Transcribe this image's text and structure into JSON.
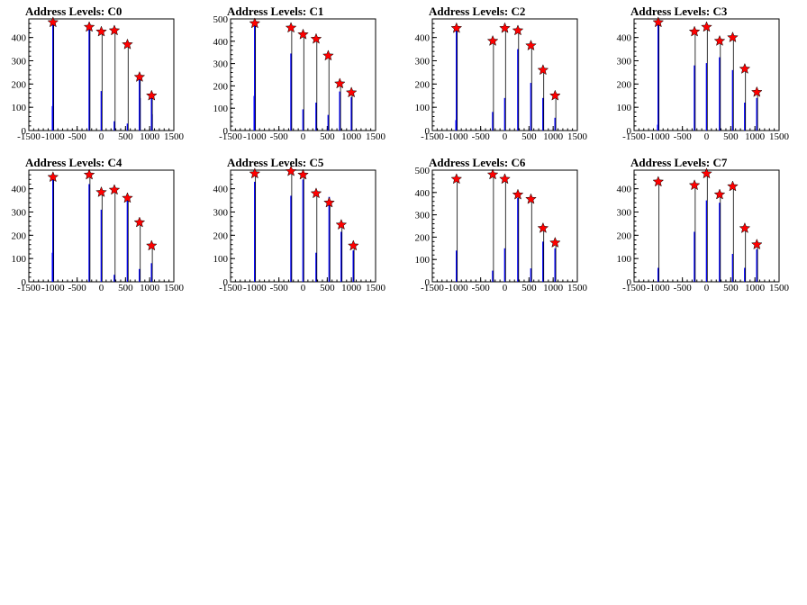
{
  "colors": {
    "bars": "#0000ff",
    "markers": "#ff0000",
    "axes": "#000000"
  },
  "chart_data": [
    {
      "type": "bar",
      "title": "Address Levels: C0",
      "xlim": [
        -1500,
        1500
      ],
      "ylim": [
        0,
        480
      ],
      "yticks": [
        0,
        100,
        200,
        300,
        400
      ],
      "xticks": [
        -1500,
        -1000,
        -500,
        0,
        500,
        1000,
        1500
      ],
      "peaks": [
        {
          "x": -1000,
          "y": 465
        },
        {
          "x": -250,
          "y": 445
        },
        {
          "x": 0,
          "y": 425
        },
        {
          "x": 270,
          "y": 430
        },
        {
          "x": 540,
          "y": 370
        },
        {
          "x": 790,
          "y": 230
        },
        {
          "x": 1040,
          "y": 150
        }
      ],
      "bars": [
        {
          "x": -1000,
          "y": 480
        },
        {
          "x": -1010,
          "y": 105
        },
        {
          "x": -250,
          "y": 460
        },
        {
          "x": 0,
          "y": 170
        },
        {
          "x": 270,
          "y": 40
        },
        {
          "x": 540,
          "y": 30
        },
        {
          "x": 790,
          "y": 240
        },
        {
          "x": 800,
          "y": 140
        },
        {
          "x": 1040,
          "y": 160
        },
        {
          "x": 1050,
          "y": 70
        }
      ]
    },
    {
      "type": "bar",
      "title": "Address Levels: C1",
      "xlim": [
        -1500,
        1500
      ],
      "ylim": [
        0,
        500
      ],
      "yticks": [
        0,
        100,
        200,
        300,
        400,
        500
      ],
      "xticks": [
        -1500,
        -1000,
        -500,
        0,
        500,
        1000,
        1500
      ],
      "peaks": [
        {
          "x": -1000,
          "y": 480
        },
        {
          "x": -250,
          "y": 460
        },
        {
          "x": 0,
          "y": 430
        },
        {
          "x": 270,
          "y": 410
        },
        {
          "x": 520,
          "y": 335
        },
        {
          "x": 760,
          "y": 210
        },
        {
          "x": 1000,
          "y": 170
        }
      ],
      "bars": [
        {
          "x": -1000,
          "y": 495
        },
        {
          "x": -1010,
          "y": 155
        },
        {
          "x": -250,
          "y": 345
        },
        {
          "x": 0,
          "y": 95
        },
        {
          "x": 270,
          "y": 125
        },
        {
          "x": 520,
          "y": 70
        },
        {
          "x": 760,
          "y": 175
        },
        {
          "x": 1000,
          "y": 150
        }
      ]
    },
    {
      "type": "bar",
      "title": "Address Levels: C2",
      "xlim": [
        -1500,
        1500
      ],
      "ylim": [
        0,
        480
      ],
      "yticks": [
        0,
        100,
        200,
        300,
        400
      ],
      "xticks": [
        -1500,
        -1000,
        -500,
        0,
        500,
        1000,
        1500
      ],
      "peaks": [
        {
          "x": -1000,
          "y": 440
        },
        {
          "x": -250,
          "y": 385
        },
        {
          "x": 0,
          "y": 440
        },
        {
          "x": 270,
          "y": 430
        },
        {
          "x": 540,
          "y": 365
        },
        {
          "x": 790,
          "y": 260
        },
        {
          "x": 1040,
          "y": 150
        }
      ],
      "bars": [
        {
          "x": -1000,
          "y": 450
        },
        {
          "x": -1010,
          "y": 45
        },
        {
          "x": -250,
          "y": 80
        },
        {
          "x": 0,
          "y": 140
        },
        {
          "x": 270,
          "y": 350
        },
        {
          "x": 540,
          "y": 205
        },
        {
          "x": 790,
          "y": 140
        },
        {
          "x": 1040,
          "y": 55
        }
      ]
    },
    {
      "type": "bar",
      "title": "Address Levels: C3",
      "xlim": [
        -1500,
        1500
      ],
      "ylim": [
        0,
        480
      ],
      "yticks": [
        0,
        100,
        200,
        300,
        400
      ],
      "xticks": [
        -1500,
        -1000,
        -500,
        0,
        500,
        1000,
        1500
      ],
      "peaks": [
        {
          "x": -1000,
          "y": 465
        },
        {
          "x": -250,
          "y": 425
        },
        {
          "x": 0,
          "y": 445
        },
        {
          "x": 270,
          "y": 385
        },
        {
          "x": 540,
          "y": 400
        },
        {
          "x": 790,
          "y": 265
        },
        {
          "x": 1040,
          "y": 165
        }
      ],
      "bars": [
        {
          "x": -1000,
          "y": 475
        },
        {
          "x": -1010,
          "y": 25
        },
        {
          "x": -250,
          "y": 280
        },
        {
          "x": 0,
          "y": 290
        },
        {
          "x": 270,
          "y": 315
        },
        {
          "x": 540,
          "y": 260
        },
        {
          "x": 790,
          "y": 120
        },
        {
          "x": 1040,
          "y": 140
        }
      ]
    },
    {
      "type": "bar",
      "title": "Address Levels: C4",
      "xlim": [
        -1500,
        1500
      ],
      "ylim": [
        0,
        480
      ],
      "yticks": [
        0,
        100,
        200,
        300,
        400
      ],
      "xticks": [
        -1500,
        -1000,
        -500,
        0,
        500,
        1000,
        1500
      ],
      "peaks": [
        {
          "x": -1000,
          "y": 450
        },
        {
          "x": -250,
          "y": 460
        },
        {
          "x": 0,
          "y": 385
        },
        {
          "x": 270,
          "y": 395
        },
        {
          "x": 540,
          "y": 360
        },
        {
          "x": 790,
          "y": 255
        },
        {
          "x": 1040,
          "y": 155
        }
      ],
      "bars": [
        {
          "x": -1000,
          "y": 445
        },
        {
          "x": -1010,
          "y": 125
        },
        {
          "x": -250,
          "y": 420
        },
        {
          "x": 0,
          "y": 310
        },
        {
          "x": 270,
          "y": 30
        },
        {
          "x": 540,
          "y": 370
        },
        {
          "x": 790,
          "y": 55
        },
        {
          "x": 1040,
          "y": 80
        }
      ]
    },
    {
      "type": "bar",
      "title": "Address Levels: C5",
      "xlim": [
        -1500,
        1500
      ],
      "ylim": [
        0,
        480
      ],
      "yticks": [
        0,
        100,
        200,
        300,
        400
      ],
      "xticks": [
        -1500,
        -1000,
        -500,
        0,
        500,
        1000,
        1500
      ],
      "peaks": [
        {
          "x": -1000,
          "y": 465
        },
        {
          "x": -250,
          "y": 475
        },
        {
          "x": 0,
          "y": 460
        },
        {
          "x": 270,
          "y": 380
        },
        {
          "x": 540,
          "y": 340
        },
        {
          "x": 790,
          "y": 245
        },
        {
          "x": 1040,
          "y": 155
        }
      ],
      "bars": [
        {
          "x": -1000,
          "y": 430
        },
        {
          "x": -250,
          "y": 370
        },
        {
          "x": 0,
          "y": 440
        },
        {
          "x": 270,
          "y": 125
        },
        {
          "x": 540,
          "y": 365
        },
        {
          "x": 790,
          "y": 215
        },
        {
          "x": 1040,
          "y": 135
        }
      ]
    },
    {
      "type": "bar",
      "title": "Address Levels: C6",
      "xlim": [
        -1500,
        1500
      ],
      "ylim": [
        0,
        500
      ],
      "yticks": [
        0,
        100,
        200,
        300,
        400,
        500
      ],
      "xticks": [
        -1500,
        -1000,
        -500,
        0,
        500,
        1000,
        1500
      ],
      "peaks": [
        {
          "x": -1000,
          "y": 460
        },
        {
          "x": -250,
          "y": 480
        },
        {
          "x": 0,
          "y": 460
        },
        {
          "x": 270,
          "y": 390
        },
        {
          "x": 540,
          "y": 370
        },
        {
          "x": 790,
          "y": 240
        },
        {
          "x": 1040,
          "y": 175
        }
      ],
      "bars": [
        {
          "x": -1000,
          "y": 140
        },
        {
          "x": -250,
          "y": 50
        },
        {
          "x": 0,
          "y": 150
        },
        {
          "x": 270,
          "y": 375
        },
        {
          "x": 540,
          "y": 60
        },
        {
          "x": 790,
          "y": 180
        },
        {
          "x": 1040,
          "y": 150
        }
      ]
    },
    {
      "type": "bar",
      "title": "Address Levels: C7",
      "xlim": [
        -1500,
        1500
      ],
      "ylim": [
        0,
        480
      ],
      "yticks": [
        0,
        100,
        200,
        300,
        400
      ],
      "xticks": [
        -1500,
        -1000,
        -500,
        0,
        500,
        1000,
        1500
      ],
      "peaks": [
        {
          "x": -1000,
          "y": 430
        },
        {
          "x": -250,
          "y": 415
        },
        {
          "x": 0,
          "y": 465
        },
        {
          "x": 270,
          "y": 375
        },
        {
          "x": 540,
          "y": 410
        },
        {
          "x": 790,
          "y": 230
        },
        {
          "x": 1040,
          "y": 160
        }
      ],
      "bars": [
        {
          "x": -1000,
          "y": 60
        },
        {
          "x": -250,
          "y": 215
        },
        {
          "x": 0,
          "y": 350
        },
        {
          "x": 270,
          "y": 340
        },
        {
          "x": 540,
          "y": 120
        },
        {
          "x": 790,
          "y": 60
        },
        {
          "x": 1040,
          "y": 140
        }
      ]
    }
  ]
}
